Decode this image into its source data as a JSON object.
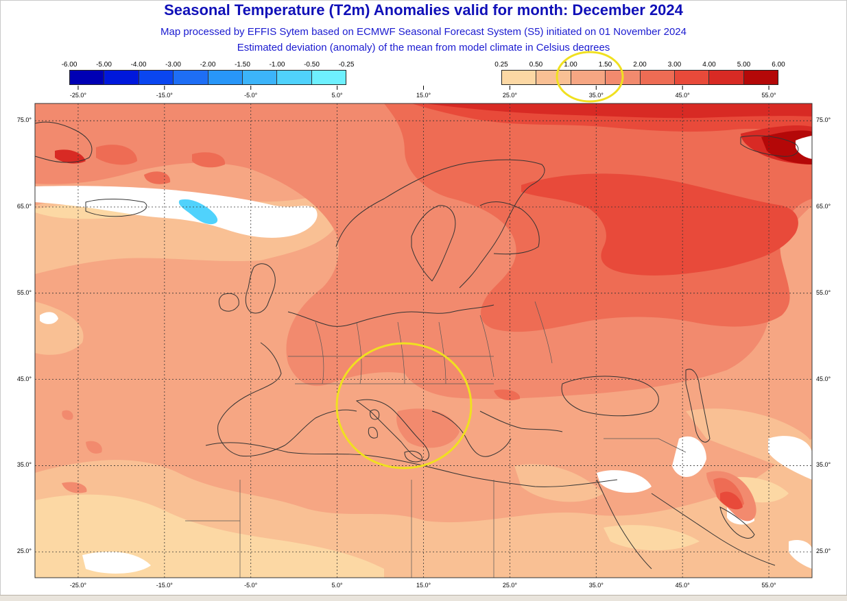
{
  "title": "Seasonal Temperature (T2m) Anomalies valid for month: December 2024",
  "subtitle_1": "Map processed by EFFIS Sytem based on ECMWF Seasonal Forecast System (S5) initiated on 01 November 2024",
  "subtitle_2": "Estimated deviation (anomaly) of the mean from model climate in Celsius degrees",
  "legend_negative": {
    "labels": [
      "-6.00",
      "-5.00",
      "-4.00",
      "-3.00",
      "-2.00",
      "-1.50",
      "-1.00",
      "-0.50",
      "-0.25"
    ],
    "colors": [
      "#0000b4",
      "#0018dc",
      "#0a46f0",
      "#1e6ef5",
      "#2896f8",
      "#3cb4fa",
      "#50d2fc",
      "#6ef0fe"
    ]
  },
  "legend_positive": {
    "labels": [
      "0.25",
      "0.50",
      "1.00",
      "1.50",
      "2.00",
      "3.00",
      "4.00",
      "5.00",
      "6.00"
    ],
    "colors": [
      "#fcd8a4",
      "#f9c094",
      "#f6a683",
      "#f28a6e",
      "#ee6c54",
      "#e84a3a",
      "#d82a24",
      "#b40808"
    ]
  },
  "map": {
    "lon_ticks": [
      "-25.0°",
      "-15.0°",
      "-5.0°",
      "5.0°",
      "15.0°",
      "25.0°",
      "35.0°",
      "45.0°",
      "55.0°"
    ],
    "lat_ticks": [
      "75.0°",
      "65.0°",
      "55.0°",
      "45.0°",
      "35.0°",
      "25.0°"
    ],
    "lon_range": [
      -30,
      60
    ],
    "lat_range": [
      22,
      77
    ],
    "highlight_color": "#f0e020",
    "highlights": [
      "legend-1.00-1.50-range",
      "italy-central-mediterranean"
    ]
  }
}
